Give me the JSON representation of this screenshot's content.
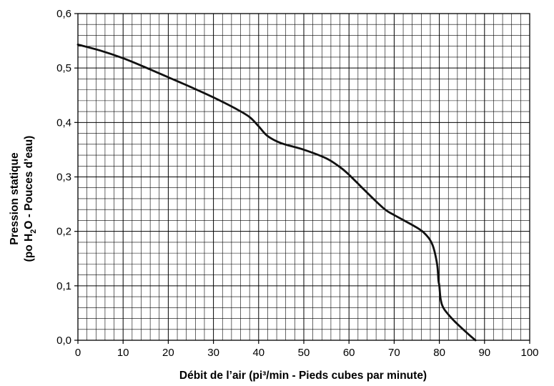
{
  "chart_data": {
    "type": "line",
    "xlabel": "Débit de l’air (pi³/min - Pieds cubes par minute)",
    "ylabel_line1": "Pression statique",
    "ylabel_line2_prefix": "(po H",
    "ylabel_line2_sub": "2",
    "ylabel_line2_suffix": "O - Pouces d’eau)",
    "xlim": [
      0,
      100
    ],
    "ylim": [
      0,
      0.6
    ],
    "x_ticks": [
      0,
      10,
      20,
      30,
      40,
      50,
      60,
      70,
      80,
      90,
      100
    ],
    "x_tick_labels": [
      "0",
      "10",
      "20",
      "30",
      "40",
      "50",
      "60",
      "70",
      "80",
      "90",
      "100"
    ],
    "y_ticks": [
      0,
      0.1,
      0.2,
      0.3,
      0.4,
      0.5,
      0.6
    ],
    "y_tick_labels": [
      "0,0",
      "0,1",
      "0,2",
      "0,3",
      "0,4",
      "0,5",
      "0,6"
    ],
    "x_minor_step": 2,
    "y_minor_step": 0.02,
    "grid": true,
    "line_color": "#111111",
    "grid_color": "#000000",
    "series": [
      {
        "x": [
          0,
          5,
          10,
          15,
          20,
          25,
          30,
          35,
          38,
          40,
          42,
          45,
          50,
          55,
          58,
          60,
          65,
          68,
          70,
          75,
          77,
          78.5,
          79.5,
          79.8,
          80,
          80.3,
          81,
          83,
          85,
          87,
          88
        ],
        "y": [
          0.543,
          0.532,
          0.518,
          0.501,
          0.483,
          0.465,
          0.446,
          0.425,
          0.41,
          0.393,
          0.375,
          0.362,
          0.35,
          0.334,
          0.318,
          0.304,
          0.263,
          0.24,
          0.23,
          0.207,
          0.194,
          0.175,
          0.14,
          0.11,
          0.1,
          0.075,
          0.058,
          0.038,
          0.022,
          0.007,
          0.0
        ]
      }
    ]
  }
}
